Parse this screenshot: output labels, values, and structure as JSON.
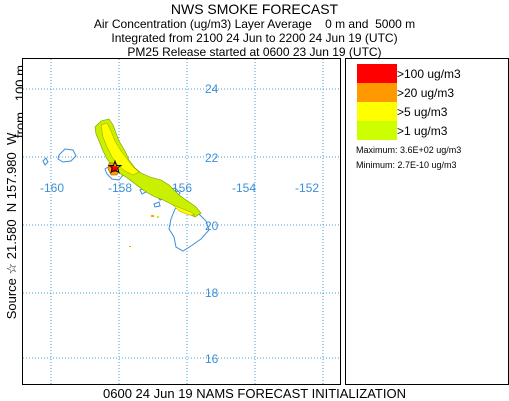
{
  "header": {
    "title": "NWS SMOKE FORECAST",
    "line1": "Air Concentration (ug/m3) Layer Average    0 m and  5000 m",
    "line2": "Integrated from 2100 24 Jun to 2200 24 Jun 19 (UTC)",
    "line3": "PM25 Release started at 0600 23 Jun 19 (UTC)"
  },
  "side": {
    "source_label": "Source ☆ 21.580  N 157.980  W",
    "height_label": "from   100 m"
  },
  "map": {
    "lat_labels": [
      "24",
      "22",
      "20",
      "18",
      "16"
    ],
    "lon_labels": [
      "-160",
      "-158",
      "-156",
      "-154",
      "-152"
    ],
    "colors": {
      "grid": "#4a9fd8",
      "coast": "#3d8fd6",
      "label": "#3d8fd6",
      "plume_outer": "#c8f000",
      "plume_mid": "#ffff00",
      "plume_core": "#ffa000",
      "plume_peak": "#ff0000"
    }
  },
  "legend": {
    "items": [
      {
        "label": ">100 ug/m3",
        "color": "#ff0000"
      },
      {
        "label": ">20 ug/m3",
        "color": "#ff9900"
      },
      {
        "label": ">5 ug/m3",
        "color": "#ffff00"
      },
      {
        "label": ">1 ug/m3",
        "color": "#ccff00"
      }
    ],
    "maximum": "Maximum: 3.6E+02 ug/m3",
    "minimum": "Minimum: 2.7E-10 ug/m3"
  },
  "footer": {
    "text": "0600 24 Jun 19 NAMS FORECAST INITIALIZATION"
  }
}
